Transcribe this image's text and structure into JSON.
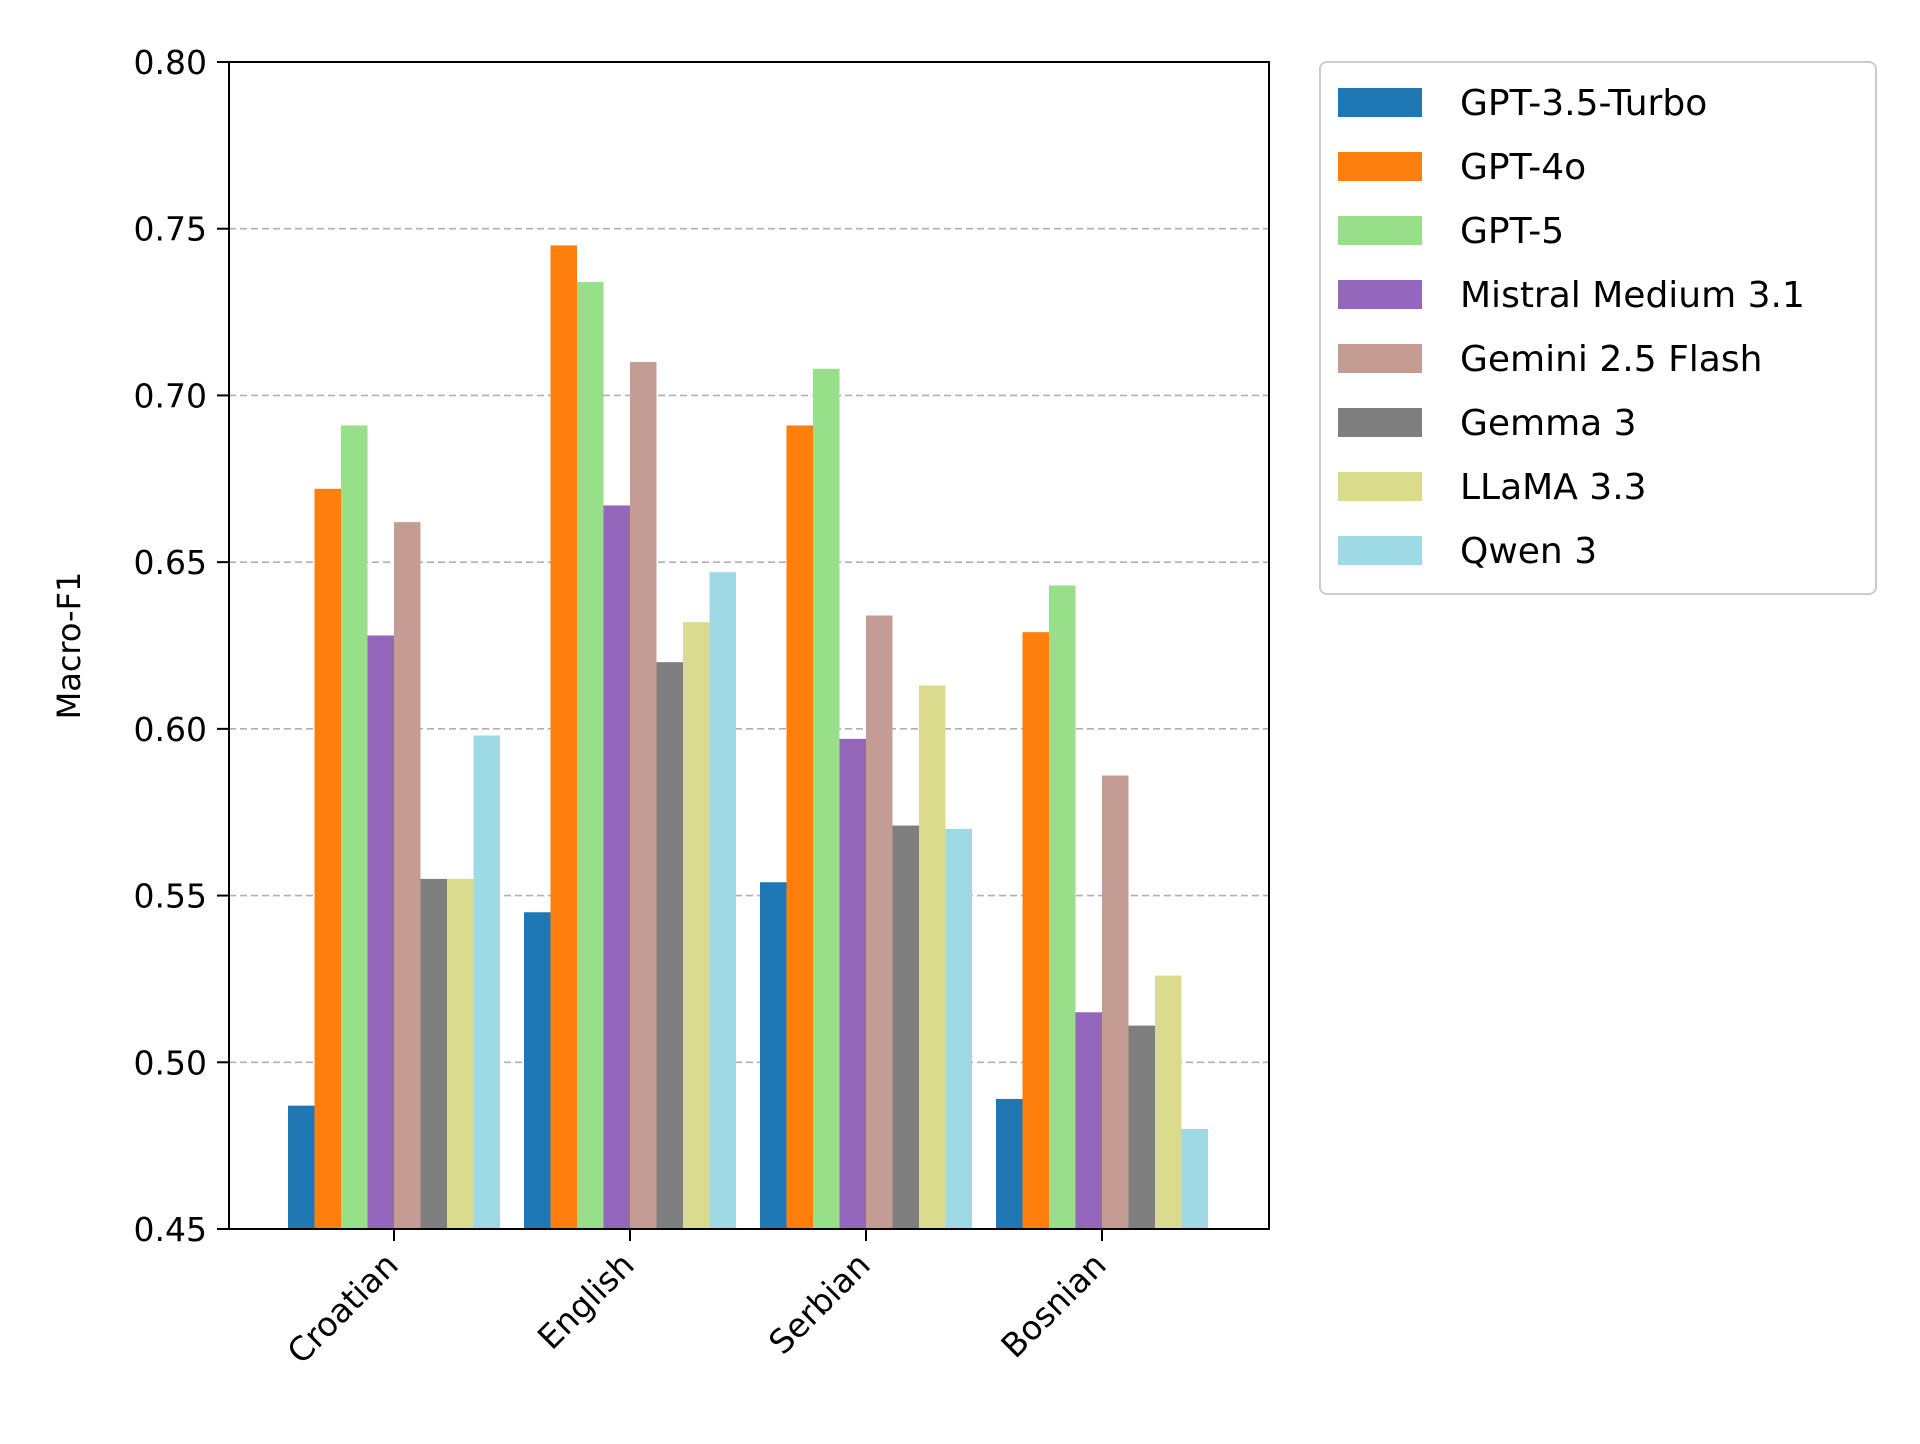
{
  "chart_data": {
    "type": "bar",
    "title": "",
    "xlabel": "",
    "ylabel": "Macro-F1",
    "ylim": [
      0.45,
      0.8
    ],
    "yticks": [
      "0.45",
      "0.50",
      "0.55",
      "0.60",
      "0.65",
      "0.70",
      "0.75",
      "0.80"
    ],
    "grid": "y-dashed",
    "legend_position": "outside-right-top",
    "categories": [
      "Croatian",
      "English",
      "Serbian",
      "Bosnian"
    ],
    "series": [
      {
        "name": "GPT-3.5-Turbo",
        "color": "#1f77b4",
        "values": [
          0.487,
          0.545,
          0.554,
          0.489
        ]
      },
      {
        "name": "GPT-4o",
        "color": "#ff7f0e",
        "values": [
          0.672,
          0.745,
          0.691,
          0.629
        ]
      },
      {
        "name": "GPT-5",
        "color": "#98df8a",
        "values": [
          0.691,
          0.734,
          0.708,
          0.643
        ]
      },
      {
        "name": "Mistral Medium 3.1",
        "color": "#9467bd",
        "values": [
          0.628,
          0.667,
          0.597,
          0.515
        ]
      },
      {
        "name": "Gemini 2.5 Flash",
        "color": "#c49c94",
        "values": [
          0.662,
          0.71,
          0.634,
          0.586
        ]
      },
      {
        "name": "Gemma 3",
        "color": "#7f7f7f",
        "values": [
          0.555,
          0.62,
          0.571,
          0.511
        ]
      },
      {
        "name": "LLaMA 3.3",
        "color": "#dbdb8d",
        "values": [
          0.555,
          0.632,
          0.613,
          0.526
        ]
      },
      {
        "name": "Qwen 3",
        "color": "#9edae5",
        "values": [
          0.598,
          0.647,
          0.57,
          0.48
        ]
      }
    ]
  }
}
